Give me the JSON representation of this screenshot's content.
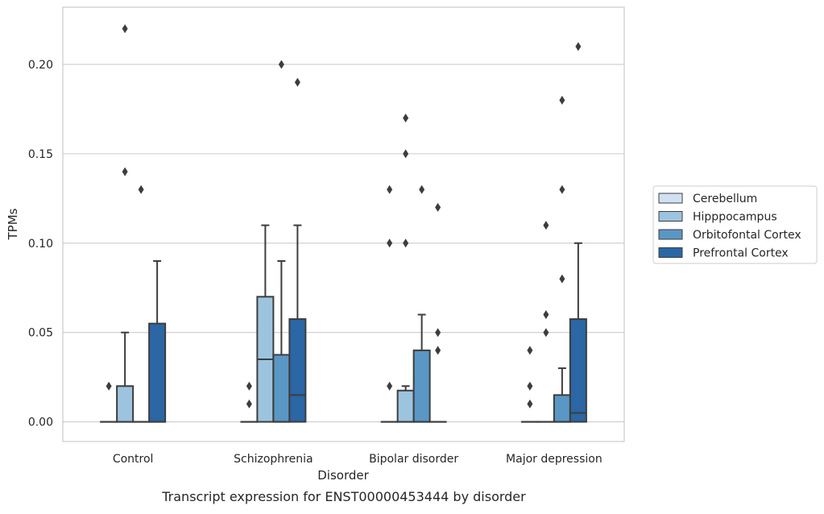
{
  "chart_data": {
    "type": "box",
    "title": "",
    "caption": "Transcript expression for ENST00000453444 by disorder",
    "xlabel": "Disorder",
    "ylabel": "TPMs",
    "categories": [
      "Control",
      "Schizophrenia",
      "Bipolar disorder",
      "Major depression"
    ],
    "ylim": [
      -0.011,
      0.232
    ],
    "yticks": [
      0.0,
      0.05,
      0.1,
      0.15,
      0.2
    ],
    "ytick_labels": [
      "0.00",
      "0.05",
      "0.10",
      "0.15",
      "0.20"
    ],
    "grid": "horizontal",
    "legend": {
      "placement": "right",
      "entries": [
        "Cerebellum",
        "Hipppocampus",
        "Orbitofontal Cortex",
        "Prefrontal Cortex"
      ]
    },
    "colors": {
      "Cerebellum": "#d0e1f2",
      "Hipppocampus": "#9dc4df",
      "Orbitofontal Cortex": "#5a97c5",
      "Prefrontal Cortex": "#2b66a5",
      "line": "#3d3d3d",
      "grid": "#cccccc",
      "frame": "#cccccc"
    },
    "series": [
      {
        "name": "Cerebellum",
        "boxes": [
          {
            "q1": 0,
            "median": 0,
            "q3": 0,
            "whislo": 0,
            "whishi": 0,
            "fliers": [
              0.02
            ]
          },
          {
            "q1": 0,
            "median": 0,
            "q3": 0,
            "whislo": 0,
            "whishi": 0,
            "fliers": [
              0.02,
              0.01
            ]
          },
          {
            "q1": 0,
            "median": 0,
            "q3": 0,
            "whislo": 0,
            "whishi": 0,
            "fliers": [
              0.13,
              0.1,
              0.02
            ]
          },
          {
            "q1": 0,
            "median": 0,
            "q3": 0,
            "whislo": 0,
            "whishi": 0,
            "fliers": [
              0.04,
              0.02,
              0.01
            ]
          }
        ]
      },
      {
        "name": "Hipppocampus",
        "boxes": [
          {
            "q1": 0,
            "median": 0,
            "q3": 0.02,
            "whislo": 0,
            "whishi": 0.05,
            "fliers": [
              0.22,
              0.14
            ]
          },
          {
            "q1": 0,
            "median": 0.035,
            "q3": 0.07,
            "whislo": 0,
            "whishi": 0.11,
            "fliers": []
          },
          {
            "q1": 0,
            "median": 0,
            "q3": 0.0175,
            "whislo": 0,
            "whishi": 0.02,
            "fliers": [
              0.17,
              0.15,
              0.1
            ]
          },
          {
            "q1": 0,
            "median": 0,
            "q3": 0,
            "whislo": 0,
            "whishi": 0,
            "fliers": [
              0.11,
              0.06,
              0.05
            ]
          }
        ]
      },
      {
        "name": "Orbitofontal Cortex",
        "boxes": [
          {
            "q1": 0,
            "median": 0,
            "q3": 0,
            "whislo": 0,
            "whishi": 0,
            "fliers": [
              0.13
            ]
          },
          {
            "q1": 0,
            "median": 0,
            "q3": 0.0375,
            "whislo": 0,
            "whishi": 0.09,
            "fliers": [
              0.2
            ]
          },
          {
            "q1": 0,
            "median": 0,
            "q3": 0.04,
            "whislo": 0,
            "whishi": 0.06,
            "fliers": [
              0.13
            ]
          },
          {
            "q1": 0,
            "median": 0,
            "q3": 0.015,
            "whislo": 0,
            "whishi": 0.03,
            "fliers": [
              0.18,
              0.13,
              0.08
            ]
          }
        ]
      },
      {
        "name": "Prefrontal Cortex",
        "boxes": [
          {
            "q1": 0,
            "median": 0,
            "q3": 0.055,
            "whislo": 0,
            "whishi": 0.09,
            "fliers": []
          },
          {
            "q1": 0,
            "median": 0.015,
            "q3": 0.0575,
            "whislo": 0,
            "whishi": 0.11,
            "fliers": [
              0.19
            ]
          },
          {
            "q1": 0,
            "median": 0,
            "q3": 0,
            "whislo": 0,
            "whishi": 0,
            "fliers": [
              0.12,
              0.05,
              0.04
            ]
          },
          {
            "q1": 0,
            "median": 0.005,
            "q3": 0.0575,
            "whislo": 0,
            "whishi": 0.1,
            "fliers": [
              0.21
            ]
          }
        ]
      }
    ]
  }
}
